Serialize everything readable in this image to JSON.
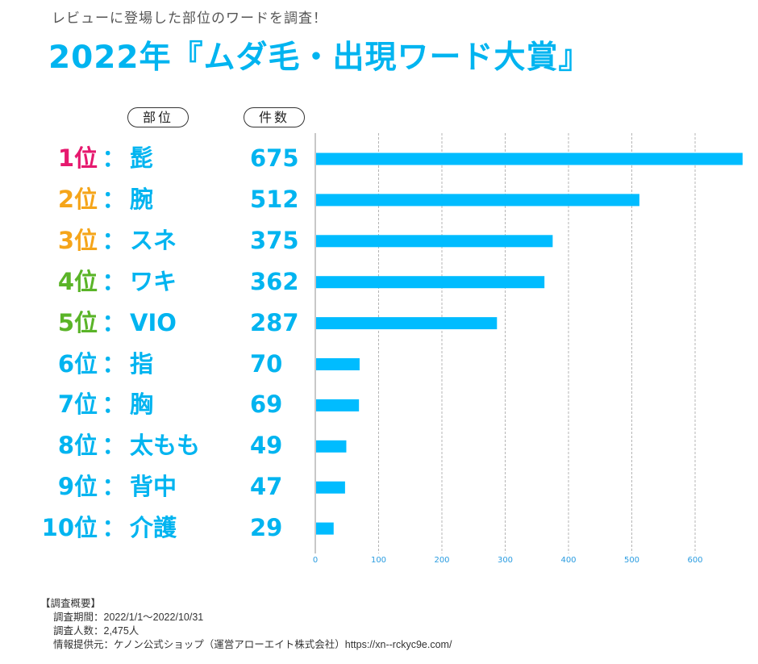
{
  "header": {
    "subtitle": "レビューに登場した部位のワードを調査！",
    "title": "2022年『ムダ毛・出現ワード大賞』"
  },
  "columns": {
    "part": "部位",
    "count": "件数"
  },
  "colors": {
    "rank1": "#e6196e",
    "rank2_3": "#f5a51a",
    "rank4_5": "#5ab428",
    "rank6_10": "#00b4f0",
    "bar": "#00bcff",
    "tick_label": "#2a9ce0"
  },
  "chart_data": {
    "type": "bar",
    "orientation": "horizontal",
    "title": "2022年『ムダ毛・出現ワード大賞』",
    "xlabel": "",
    "ylabel": "",
    "xlim": [
      0,
      675
    ],
    "x_ticks": [
      0,
      100,
      200,
      300,
      400,
      500,
      600
    ],
    "grid": true,
    "legend": "none",
    "rows": [
      {
        "rank": "1位",
        "sep": "：",
        "category": "髭",
        "value": 675,
        "count_label": "675",
        "rank_color": "#e6196e"
      },
      {
        "rank": "2位",
        "sep": "：",
        "category": "腕",
        "value": 512,
        "count_label": "512",
        "rank_color": "#f5a51a"
      },
      {
        "rank": "3位",
        "sep": "：",
        "category": "スネ",
        "value": 375,
        "count_label": "375",
        "rank_color": "#f5a51a"
      },
      {
        "rank": "4位",
        "sep": "：",
        "category": "ワキ",
        "value": 362,
        "count_label": "362",
        "rank_color": "#5ab428"
      },
      {
        "rank": "5位",
        "sep": "：",
        "category": "VIO",
        "value": 287,
        "count_label": "287",
        "rank_color": "#5ab428"
      },
      {
        "rank": "6位",
        "sep": "：",
        "category": "指",
        "value": 70,
        "count_label": "70",
        "rank_color": "#00b4f0"
      },
      {
        "rank": "7位",
        "sep": "：",
        "category": "胸",
        "value": 69,
        "count_label": "69",
        "rank_color": "#00b4f0"
      },
      {
        "rank": "8位",
        "sep": "：",
        "category": "太もも",
        "value": 49,
        "count_label": "49",
        "rank_color": "#00b4f0"
      },
      {
        "rank": "9位",
        "sep": "：",
        "category": "背中",
        "value": 47,
        "count_label": "47",
        "rank_color": "#00b4f0"
      },
      {
        "rank": "10位",
        "sep": "：",
        "category": "介護",
        "value": 29,
        "count_label": "29",
        "rank_color": "#00b4f0"
      }
    ]
  },
  "notes": {
    "heading": "【調査概要】",
    "period": "調査期間：2022/1/1～2022/10/31",
    "respondents": "調査人数：2,475人",
    "source": "情報提供元：ケノン公式ショップ（運営アローエイト株式会社）https://xn--rckyc9e.com/"
  }
}
